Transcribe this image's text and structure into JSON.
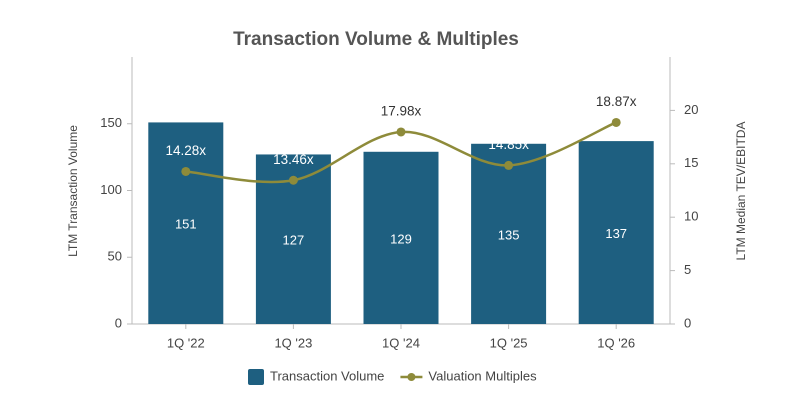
{
  "chart_data": {
    "type": "combo",
    "title": "Transaction Volume & Multiples",
    "ylabel": "LTM Transaction Volume",
    "y2label": "LTM Median TEV/EBITDA",
    "categories": [
      "1Q '22",
      "1Q '23",
      "1Q '24",
      "1Q '25",
      "1Q '26"
    ],
    "ylim": [
      0,
      200
    ],
    "yticks": [
      0,
      50,
      100,
      150
    ],
    "y2lim": [
      0,
      25
    ],
    "y2ticks": [
      0,
      5,
      10,
      15,
      20
    ],
    "series": [
      {
        "name": "Transaction Volume",
        "type": "bar",
        "color": "#1e5f80",
        "values": [
          151,
          127,
          129,
          135,
          137
        ]
      },
      {
        "name": "Valuation Multiples",
        "type": "line",
        "axis": "y2",
        "color": "#8e8b3a",
        "values": [
          14.28,
          13.46,
          17.98,
          14.85,
          18.87
        ],
        "value_labels": [
          "14.28x",
          "13.46x",
          "17.98x",
          "14.85x",
          "18.87x"
        ]
      }
    ],
    "legend": "bottom"
  }
}
